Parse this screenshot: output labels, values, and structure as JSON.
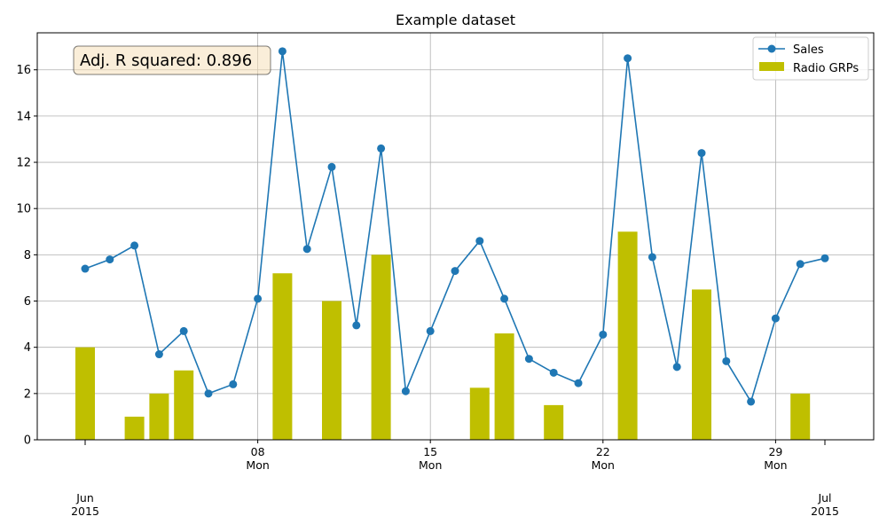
{
  "chart_data": {
    "type": "bar+line",
    "title": "Example dataset",
    "xlabel": "",
    "ylabel": "",
    "x": [
      "2015-06-01",
      "2015-06-02",
      "2015-06-03",
      "2015-06-04",
      "2015-06-05",
      "2015-06-06",
      "2015-06-07",
      "2015-06-08",
      "2015-06-09",
      "2015-06-10",
      "2015-06-11",
      "2015-06-12",
      "2015-06-13",
      "2015-06-14",
      "2015-06-15",
      "2015-06-16",
      "2015-06-17",
      "2015-06-18",
      "2015-06-19",
      "2015-06-20",
      "2015-06-21",
      "2015-06-22",
      "2015-06-23",
      "2015-06-24",
      "2015-06-25",
      "2015-06-26",
      "2015-06-27",
      "2015-06-28",
      "2015-06-29",
      "2015-06-30",
      "2015-07-01"
    ],
    "series": [
      {
        "name": "Sales",
        "kind": "line",
        "color": "#1f77b4",
        "values": [
          7.4,
          7.8,
          8.4,
          3.7,
          4.7,
          2.0,
          2.4,
          6.1,
          16.8,
          8.25,
          11.8,
          4.95,
          12.6,
          2.1,
          4.7,
          7.3,
          8.6,
          6.1,
          3.5,
          2.9,
          2.45,
          4.55,
          16.5,
          7.9,
          3.15,
          12.4,
          3.4,
          1.65,
          5.25,
          7.6,
          7.85
        ]
      },
      {
        "name": "Radio GRPs",
        "kind": "bar",
        "color": "#bfbf00",
        "values": [
          4.0,
          0,
          1.0,
          2.0,
          3.0,
          0,
          0,
          0,
          7.2,
          0,
          6.0,
          0,
          8.0,
          0,
          0,
          0,
          2.25,
          4.6,
          0,
          1.5,
          0,
          0,
          9.0,
          0,
          0,
          6.5,
          0,
          0,
          0,
          2.0,
          0
        ]
      }
    ],
    "ylim": [
      0,
      17.6
    ],
    "yticks": [
      "0",
      "2",
      "4",
      "6",
      "8",
      "10",
      "12",
      "14",
      "16"
    ],
    "minor_xticks": [
      {
        "date": "2015-06-08",
        "label": "08\nMon"
      },
      {
        "date": "2015-06-15",
        "label": "15\nMon"
      },
      {
        "date": "2015-06-22",
        "label": "22\nMon"
      },
      {
        "date": "2015-06-29",
        "label": "29\nMon"
      }
    ],
    "major_xticks": [
      {
        "date": "2015-06-01",
        "label": "Jun\n2015"
      },
      {
        "date": "2015-07-01",
        "label": "Jul\n2015"
      }
    ],
    "grid": true,
    "legend_position": "top-right",
    "annotation": "Adj. R squared: 0.896"
  }
}
